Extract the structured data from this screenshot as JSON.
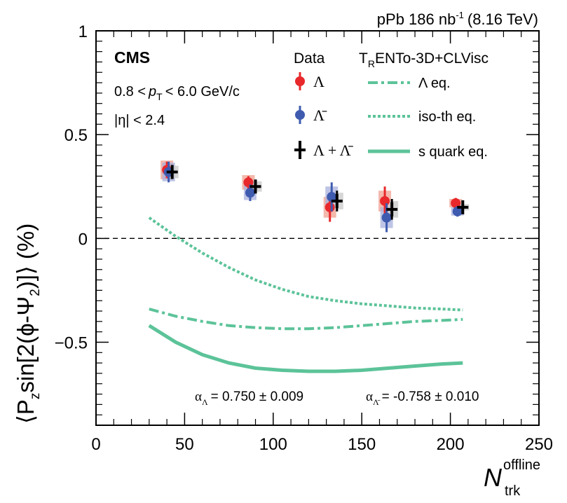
{
  "chart_data": {
    "type": "scatter",
    "header": {
      "system": "pPb 186 nb",
      "system_sup": "-1",
      "energy": "(8.16 TeV)"
    },
    "experiment": "CMS",
    "cuts": {
      "pt_low": "0.8 <",
      "pt_var": "p",
      "pt_sub": "T",
      "pt_high": "< 6.0 GeV/c",
      "eta": "|η| < 2.4"
    },
    "x_axis": {
      "label_main": "N",
      "label_sub": "trk",
      "label_sup": "offline",
      "range": [
        0,
        250
      ],
      "ticks": [
        0,
        50,
        100,
        150,
        200,
        250
      ],
      "tick_labels": [
        "0",
        "50",
        "100",
        "150",
        "200",
        "250"
      ]
    },
    "y_axis": {
      "label": "⟨P",
      "label_sub1": "z",
      "label_mid": "sin[2(ϕ-Ψ",
      "label_sub2": "2",
      "label_end": ")]⟩ (%)",
      "range": [
        -0.9,
        1.0
      ],
      "ticks": [
        -0.5,
        0,
        0.5,
        1.0
      ],
      "tick_labels": [
        "−0.5",
        "0",
        "0.5",
        "1"
      ]
    },
    "legend_data": {
      "title": "Data",
      "entries": [
        {
          "label": "Λ",
          "marker": "circle",
          "color": "#e8282b"
        },
        {
          "label": "Λ̄",
          "marker": "circle",
          "color": "#3f5bb0"
        },
        {
          "label": "Λ + Λ̄",
          "marker": "cross",
          "color": "#000000"
        }
      ]
    },
    "legend_model": {
      "title_pre": "T",
      "title_sub": "R",
      "title_post": "ENTo-3D+CLVisc",
      "entries": [
        {
          "label": "Λ eq.",
          "style": "dashdot"
        },
        {
          "label": "iso-th eq.",
          "style": "dotted"
        },
        {
          "label": "s quark eq.",
          "style": "solid"
        }
      ]
    },
    "model_color": "#5cc399",
    "alpha_text": {
      "lambda_label": "α",
      "lambda_sub": "Λ",
      "lambda_value": "= 0.750 ± 0.009",
      "lambdabar_label": "α",
      "lambdabar_sub": "Λ̄",
      "lambdabar_value": "= -0.758 ± 0.010"
    },
    "series": [
      {
        "name": "Λ",
        "color": "#e8282b",
        "sys_color": "#f0a090",
        "points": [
          {
            "x": 40,
            "y": 0.33,
            "err": 0.04,
            "sys": 0.045
          },
          {
            "x": 86,
            "y": 0.27,
            "err": 0.03,
            "sys": 0.035
          },
          {
            "x": 132,
            "y": 0.15,
            "err": 0.07,
            "sys": 0.05
          },
          {
            "x": 163,
            "y": 0.18,
            "err": 0.07,
            "sys": 0.05
          },
          {
            "x": 203,
            "y": 0.17,
            "err": 0.025,
            "sys": 0.02
          }
        ]
      },
      {
        "name": "Λ̄",
        "color": "#3f5bb0",
        "sys_color": "#a8b0dc",
        "points": [
          {
            "x": 41,
            "y": 0.32,
            "err": 0.05,
            "sys": 0.045
          },
          {
            "x": 87,
            "y": 0.22,
            "err": 0.04,
            "sys": 0.035
          },
          {
            "x": 133,
            "y": 0.2,
            "err": 0.07,
            "sys": 0.05
          },
          {
            "x": 164,
            "y": 0.1,
            "err": 0.07,
            "sys": 0.05
          },
          {
            "x": 204,
            "y": 0.13,
            "err": 0.025,
            "sys": 0.02
          }
        ]
      },
      {
        "name": "Λ + Λ̄",
        "color": "#000000",
        "sys_color": "#c8c8c8",
        "points": [
          {
            "x": 43,
            "y": 0.32,
            "err": 0.03,
            "sys": 0.03
          },
          {
            "x": 90,
            "y": 0.25,
            "err": 0.025,
            "sys": 0.025
          },
          {
            "x": 136,
            "y": 0.18,
            "err": 0.05,
            "sys": 0.04
          },
          {
            "x": 167,
            "y": 0.14,
            "err": 0.05,
            "sys": 0.04
          },
          {
            "x": 207,
            "y": 0.15,
            "err": 0.018,
            "sys": 0.015
          }
        ]
      }
    ],
    "model_curves": [
      {
        "name": "iso-th eq.",
        "style": "dotted",
        "x": [
          30,
          45,
          60,
          75,
          90,
          105,
          120,
          135,
          150,
          165,
          180,
          195,
          207
        ],
        "y": [
          0.1,
          0.01,
          -0.07,
          -0.14,
          -0.2,
          -0.245,
          -0.28,
          -0.3,
          -0.315,
          -0.325,
          -0.335,
          -0.34,
          -0.345
        ]
      },
      {
        "name": "Λ eq.",
        "style": "dashdot",
        "x": [
          30,
          45,
          60,
          75,
          90,
          105,
          120,
          135,
          150,
          165,
          180,
          195,
          207
        ],
        "y": [
          -0.34,
          -0.375,
          -0.4,
          -0.42,
          -0.43,
          -0.435,
          -0.435,
          -0.43,
          -0.42,
          -0.41,
          -0.4,
          -0.395,
          -0.39
        ]
      },
      {
        "name": "s quark eq.",
        "style": "solid",
        "x": [
          30,
          45,
          60,
          75,
          90,
          105,
          120,
          135,
          150,
          165,
          180,
          195,
          207
        ],
        "y": [
          -0.42,
          -0.5,
          -0.56,
          -0.6,
          -0.625,
          -0.635,
          -0.64,
          -0.64,
          -0.635,
          -0.625,
          -0.615,
          -0.605,
          -0.6
        ]
      }
    ]
  }
}
